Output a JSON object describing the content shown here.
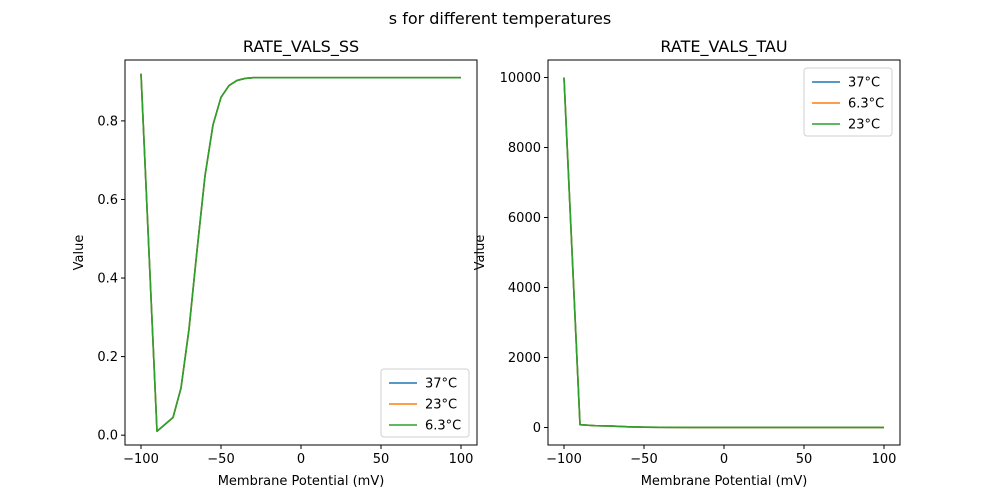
{
  "suptitle": "s for different temperatures",
  "chart_data": [
    {
      "type": "line",
      "title": "RATE_VALS_SS",
      "xlabel": "Membrane Potential (mV)",
      "ylabel": "Value",
      "xlim": [
        -110,
        110
      ],
      "ylim": [
        -0.025,
        0.955
      ],
      "xticks": [
        -100,
        -50,
        0,
        50,
        100
      ],
      "xtick_labels": [
        "−100",
        "−50",
        "0",
        "50",
        "100"
      ],
      "yticks": [
        0.0,
        0.2,
        0.4,
        0.6,
        0.8
      ],
      "ytick_labels": [
        "0.0",
        "0.2",
        "0.4",
        "0.6",
        "0.8"
      ],
      "legend_position": "lower-right",
      "x": [
        -100,
        -90,
        -80,
        -75,
        -70,
        -65,
        -60,
        -55,
        -50,
        -45,
        -40,
        -35,
        -30,
        -20,
        0,
        50,
        100
      ],
      "series": [
        {
          "name": "37°C",
          "color": "#1f77b4",
          "values": [
            0.92,
            0.01,
            0.045,
            0.12,
            0.27,
            0.47,
            0.66,
            0.79,
            0.86,
            0.89,
            0.903,
            0.908,
            0.91,
            0.91,
            0.91,
            0.91,
            0.91
          ]
        },
        {
          "name": "23°C",
          "color": "#ff7f0e",
          "values": [
            0.92,
            0.01,
            0.045,
            0.12,
            0.27,
            0.47,
            0.66,
            0.79,
            0.86,
            0.89,
            0.903,
            0.908,
            0.91,
            0.91,
            0.91,
            0.91,
            0.91
          ]
        },
        {
          "name": "6.3°C",
          "color": "#2ca02c",
          "values": [
            0.92,
            0.01,
            0.045,
            0.12,
            0.27,
            0.47,
            0.66,
            0.79,
            0.86,
            0.89,
            0.903,
            0.908,
            0.91,
            0.91,
            0.91,
            0.91,
            0.91
          ]
        }
      ]
    },
    {
      "type": "line",
      "title": "RATE_VALS_TAU",
      "xlabel": "Membrane Potential (mV)",
      "ylabel": "Value",
      "xlim": [
        -110,
        110
      ],
      "ylim": [
        -500,
        10500
      ],
      "xticks": [
        -100,
        -50,
        0,
        50,
        100
      ],
      "xtick_labels": [
        "−100",
        "−50",
        "0",
        "50",
        "100"
      ],
      "yticks": [
        0,
        2000,
        4000,
        6000,
        8000,
        10000
      ],
      "ytick_labels": [
        "0",
        "2000",
        "4000",
        "6000",
        "8000",
        "10000"
      ],
      "legend_position": "top-right",
      "x": [
        -100,
        -90,
        -80,
        -70,
        -60,
        -50,
        -40,
        -20,
        0,
        50,
        100
      ],
      "series": [
        {
          "name": "37°C",
          "color": "#1f77b4",
          "values": [
            10000,
            80,
            50,
            40,
            20,
            10,
            5,
            3,
            2,
            2,
            2
          ]
        },
        {
          "name": "6.3°C",
          "color": "#ff7f0e",
          "values": [
            10000,
            80,
            50,
            40,
            20,
            10,
            5,
            3,
            2,
            2,
            2
          ]
        },
        {
          "name": "23°C",
          "color": "#2ca02c",
          "values": [
            10000,
            80,
            50,
            40,
            20,
            10,
            5,
            3,
            2,
            2,
            2
          ]
        }
      ]
    }
  ]
}
